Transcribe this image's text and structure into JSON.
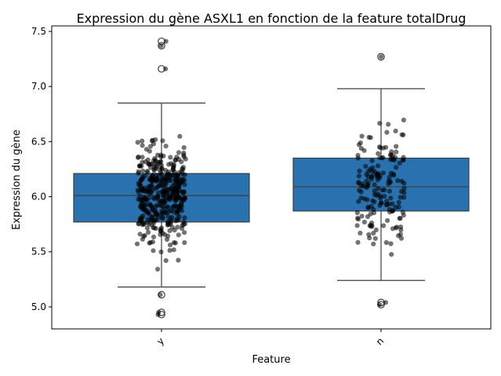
{
  "chart_data": {
    "type": "box",
    "title": "Expression du gène ASXL1 en fonction de la feature totalDrug",
    "xlabel": "Feature",
    "ylabel": "Expression du gène",
    "categories": [
      "y",
      "n"
    ],
    "ylim": [
      4.8,
      7.55
    ],
    "yticks": [
      5.0,
      5.5,
      6.0,
      6.5,
      7.0,
      7.5
    ],
    "ytick_labels": [
      "5.0",
      "5.5",
      "6.0",
      "6.5",
      "7.0",
      "7.5"
    ],
    "grid": false,
    "legend": "none",
    "box_color": "#2a71b0",
    "point_color": "#000000",
    "boxes": [
      {
        "category": "y",
        "q1": 5.77,
        "median": 6.01,
        "q3": 6.21,
        "whisker_low": 5.18,
        "whisker_high": 6.85,
        "outliers": [
          7.41,
          7.37,
          7.16,
          5.11,
          4.95,
          4.93
        ]
      },
      {
        "category": "n",
        "q1": 5.87,
        "median": 6.09,
        "q3": 6.35,
        "whisker_low": 5.24,
        "whisker_high": 6.98,
        "outliers": [
          7.27,
          5.04,
          5.02
        ]
      }
    ]
  }
}
